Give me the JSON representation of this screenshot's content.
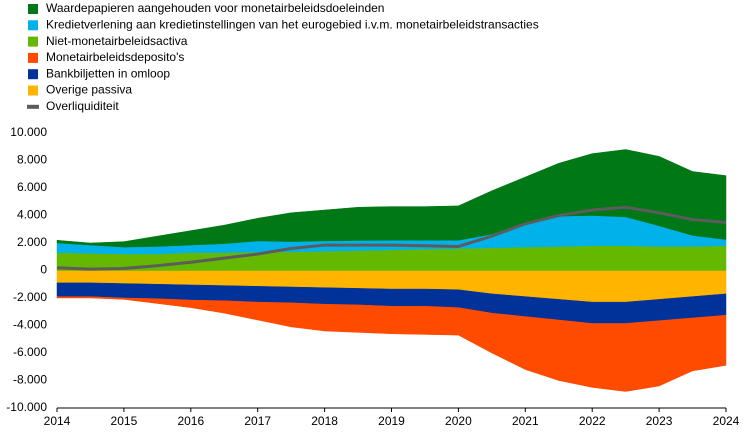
{
  "chart_data": {
    "type": "area",
    "x": [
      2014,
      2014.5,
      2015,
      2015.5,
      2016,
      2016.5,
      2017,
      2017.5,
      2018,
      2018.5,
      2019,
      2019.5,
      2020,
      2020.5,
      2021,
      2021.5,
      2022,
      2022.5,
      2023,
      2023.5,
      2024
    ],
    "series": [
      {
        "name": "Waardepapieren aangehouden voor monetairbeleidsdoeleinden",
        "color": "#007816",
        "values": [
          200,
          150,
          400,
          750,
          1050,
          1350,
          1650,
          2100,
          2250,
          2420,
          2450,
          2450,
          2500,
          3150,
          3300,
          3850,
          4500,
          4900,
          5050,
          4650,
          4650
        ]
      },
      {
        "name": "Kredietverlening aan kredietinstellingen van het eurogebied i.v.m. monetairbeleidstransacties",
        "color": "#00b1ea",
        "values": [
          700,
          600,
          500,
          550,
          550,
          650,
          800,
          750,
          750,
          730,
          700,
          650,
          600,
          1000,
          1800,
          2200,
          2200,
          2100,
          1500,
          800,
          450
        ]
      },
      {
        "name": "Niet-monetairbeleidsactiva",
        "color": "#65b800",
        "values": [
          1300,
          1250,
          1200,
          1200,
          1300,
          1300,
          1350,
          1350,
          1400,
          1450,
          1500,
          1550,
          1600,
          1650,
          1700,
          1750,
          1800,
          1800,
          1750,
          1750,
          1800
        ]
      },
      {
        "name": "Monetairbeleidsdeposito's",
        "color": "#ff4b00",
        "values": [
          -100,
          -100,
          -100,
          -350,
          -550,
          -900,
          -1300,
          -1750,
          -1950,
          -2000,
          -2000,
          -2050,
          -2000,
          -2900,
          -3850,
          -4400,
          -4650,
          -4950,
          -4750,
          -3850,
          -3650
        ]
      },
      {
        "name": "Bankbiljetten in omloop",
        "color": "#003299",
        "values": [
          -1000,
          -1000,
          -1050,
          -1050,
          -1100,
          -1100,
          -1150,
          -1150,
          -1200,
          -1200,
          -1250,
          -1250,
          -1300,
          -1400,
          -1450,
          -1500,
          -1550,
          -1550,
          -1550,
          -1550,
          -1550
        ]
      },
      {
        "name": "Overige passiva",
        "color": "#ffb400",
        "values": [
          -900,
          -900,
          -950,
          -1000,
          -1050,
          -1100,
          -1150,
          -1200,
          -1250,
          -1300,
          -1350,
          -1350,
          -1400,
          -1700,
          -1900,
          -2100,
          -2300,
          -2300,
          -2100,
          -1900,
          -1700
        ]
      },
      {
        "name": "Overliquiditeit",
        "color": "#5c5c5c",
        "type": "line",
        "values": [
          200,
          100,
          150,
          350,
          600,
          900,
          1200,
          1600,
          1850,
          1850,
          1850,
          1800,
          1750,
          2500,
          3400,
          4000,
          4400,
          4600,
          4200,
          3700,
          3500
        ]
      }
    ],
    "xlim": [
      2014,
      2024
    ],
    "xticks": [
      2014,
      2015,
      2016,
      2017,
      2018,
      2019,
      2020,
      2021,
      2022,
      2023,
      2024
    ],
    "ylim": [
      -10000,
      10000
    ],
    "yticks": [
      {
        "value": -10000,
        "label": "-10.000"
      },
      {
        "value": -8000,
        "label": "-8.000"
      },
      {
        "value": -6000,
        "label": "-6.000"
      },
      {
        "value": -4000,
        "label": "-4.000"
      },
      {
        "value": -2000,
        "label": "-2.000"
      },
      0,
      {
        "value": 2000,
        "label": "2.000"
      },
      {
        "value": 4000,
        "label": "4.000"
      },
      {
        "value": 6000,
        "label": "6.000"
      },
      {
        "value": 8000,
        "label": "8.000"
      },
      {
        "value": 10000,
        "label": "10.000"
      }
    ],
    "grid": false
  }
}
